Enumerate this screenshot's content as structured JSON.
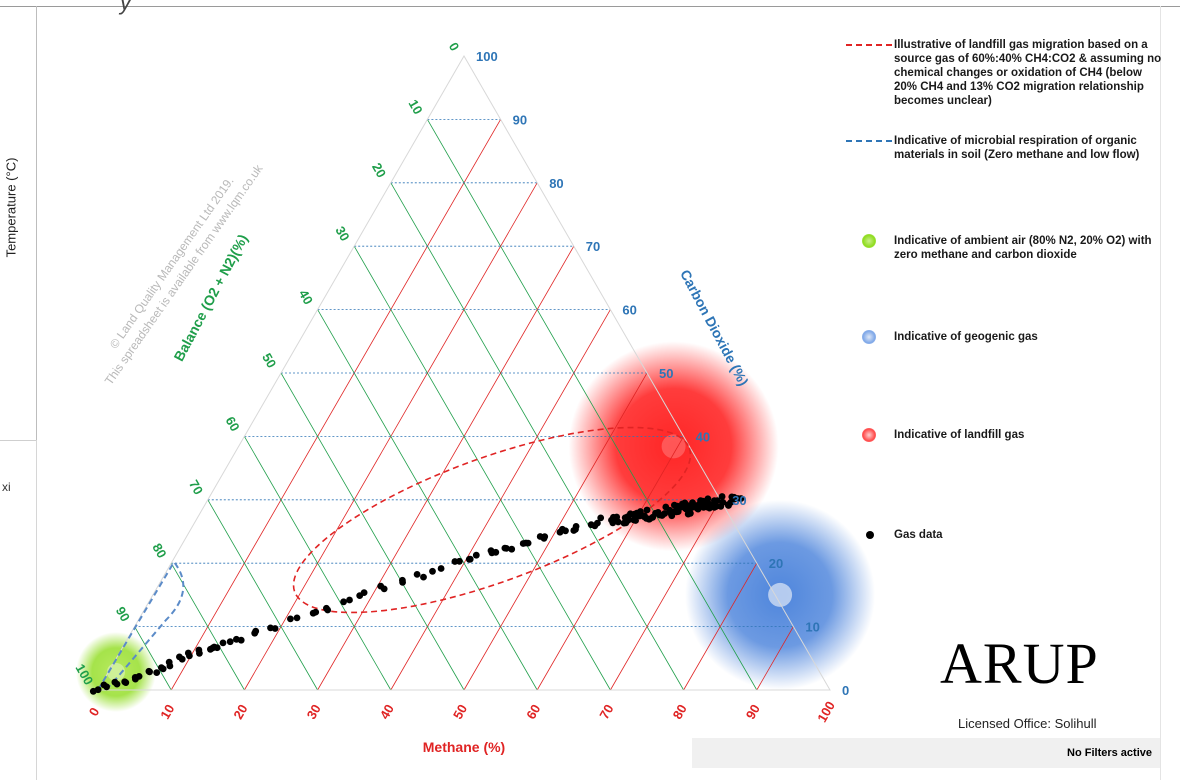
{
  "page": {
    "side_label": "Temperature (°C)",
    "side_fragment": "xi"
  },
  "chart_data": {
    "type": "scatter",
    "plot_kind": "ternary",
    "watermark": [
      "© Land Quality Management Ltd 2019.",
      "This spreadsheet is available from www.lqm.co.uk"
    ],
    "axes": {
      "methane": {
        "label": "Methane (%)",
        "ticks": [
          "0",
          "10",
          "20",
          "30",
          "40",
          "50",
          "60",
          "70",
          "80",
          "90",
          "100"
        ],
        "color": "#e02424"
      },
      "carbon_dioxide": {
        "label": "Carbon Dioxide (%)",
        "ticks": [
          "0",
          "10",
          "20",
          "30",
          "40",
          "50",
          "60",
          "70",
          "80",
          "90",
          "100"
        ],
        "color": "#2e75b6"
      },
      "balance": {
        "label": "Balance (O2 + N2)(%)",
        "ticks": [
          "0",
          "10",
          "20",
          "30",
          "40",
          "50",
          "60",
          "70",
          "80",
          "90",
          "100"
        ],
        "color": "#1f9e4a"
      }
    },
    "grid": true,
    "zones": [
      {
        "name": "ambient air",
        "methane": 0,
        "co2": 0,
        "color": "#8fdc1e"
      },
      {
        "name": "geogenic gas",
        "methane": 85,
        "co2": 15,
        "color": "#3b78d8"
      },
      {
        "name": "landfill gas",
        "methane": 60,
        "co2": 40,
        "color": "#ff1a1a"
      }
    ],
    "gas_data_approx": [
      [
        0,
        0
      ],
      [
        1,
        0.5
      ],
      [
        2,
        1
      ],
      [
        3,
        1.5
      ],
      [
        4,
        2
      ],
      [
        5,
        2.5
      ],
      [
        6,
        3
      ],
      [
        7,
        3.5
      ],
      [
        8,
        4
      ],
      [
        9,
        5
      ],
      [
        10,
        5.5
      ],
      [
        11,
        6
      ],
      [
        12,
        6.5
      ],
      [
        13,
        7
      ],
      [
        14,
        7.5
      ],
      [
        15,
        8
      ],
      [
        17,
        9
      ],
      [
        19,
        10
      ],
      [
        21,
        11
      ],
      [
        23,
        12
      ],
      [
        25,
        13
      ],
      [
        27,
        14
      ],
      [
        29,
        15
      ],
      [
        31,
        16
      ],
      [
        33,
        17
      ],
      [
        35,
        18
      ],
      [
        37,
        19
      ],
      [
        39,
        20
      ],
      [
        41,
        21
      ],
      [
        43,
        22
      ],
      [
        45,
        22.5
      ],
      [
        47,
        23.5
      ],
      [
        49,
        24
      ],
      [
        51,
        25
      ],
      [
        53,
        25.5
      ],
      [
        55,
        26
      ],
      [
        57,
        26.5
      ],
      [
        59,
        27
      ],
      [
        61,
        27.5
      ],
      [
        63,
        28
      ],
      [
        65,
        28.5
      ],
      [
        66,
        28.8
      ],
      [
        67,
        29
      ],
      [
        68,
        29.2
      ],
      [
        69,
        29.4
      ],
      [
        70,
        29.6
      ],
      [
        71,
        29.8
      ]
    ],
    "legend_position": "right",
    "legend": [
      {
        "symbol": "red-dashed-line",
        "color": "#e02424",
        "label": "Illustrative of landfill gas migration based on a source gas of 60%:40% CH4:CO2 & assuming no chemical changes or oxidation of CH4 (below 20% CH4 and 13% CO2 migration relationship becomes unclear)"
      },
      {
        "symbol": "blue-dashed-line",
        "color": "#2e75b6",
        "label": "Indicative of microbial respiration of organic materials in soil (Zero methane and low flow)"
      },
      {
        "symbol": "green-blob",
        "color": "#8fdc1e",
        "label": "Indicative of ambient air (80% N2, 20% O2) with zero methane and carbon dioxide"
      },
      {
        "symbol": "blue-blob",
        "color": "#7fa8e8",
        "label": "Indicative of geogenic gas"
      },
      {
        "symbol": "red-blob",
        "color": "#ff4a4a",
        "label": "Indicative of landfill gas"
      },
      {
        "symbol": "black-dot",
        "color": "#000000",
        "label": "Gas data"
      }
    ]
  },
  "branding": {
    "logo": "ARUP",
    "office": "Licensed Office: Solihull"
  },
  "status": {
    "filters": "No Filters active"
  }
}
